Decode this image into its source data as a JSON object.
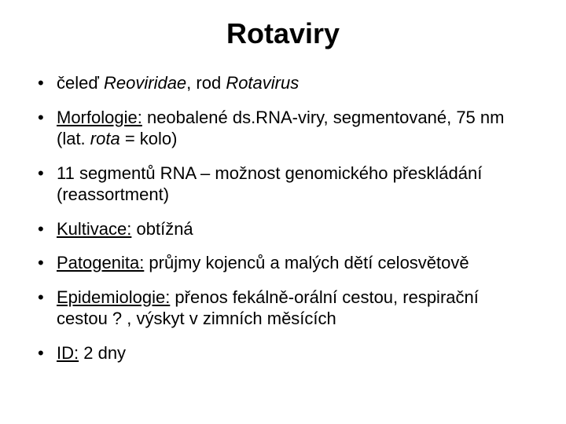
{
  "title": "Rotaviry",
  "bullets": [
    {
      "segments": [
        {
          "text": "čeleď "
        },
        {
          "text": "Reoviridae",
          "italic": true
        },
        {
          "text": ", rod "
        },
        {
          "text": "Rotavirus",
          "italic": true
        }
      ]
    },
    {
      "segments": [
        {
          "text": "Morfologie:",
          "underline": true
        },
        {
          "text": " neobalené ds.RNA-viry, segmentované, 75 nm (lat. "
        },
        {
          "text": "rota",
          "italic": true
        },
        {
          "text": " = kolo)"
        }
      ]
    },
    {
      "segments": [
        {
          "text": "11 segmentů RNA – možnost genomického přeskládání (reassortment)"
        }
      ]
    },
    {
      "segments": [
        {
          "text": "Kultivace:",
          "underline": true
        },
        {
          "text": " obtížná"
        }
      ]
    },
    {
      "segments": [
        {
          "text": "Patogenita:",
          "underline": true
        },
        {
          "text": " průjmy kojenců a malých dětí celosvětově"
        }
      ]
    },
    {
      "segments": [
        {
          "text": "Epidemiologie:",
          "underline": true
        },
        {
          "text": " přenos fekálně-orální cestou, respirační cestou ? , výskyt v zimních měsících"
        }
      ]
    },
    {
      "segments": [
        {
          "text": "ID:",
          "underline": true
        },
        {
          "text": " 2 dny"
        }
      ]
    }
  ],
  "style": {
    "background_color": "#ffffff",
    "text_color": "#000000",
    "title_fontsize": 36,
    "title_fontweight": "bold",
    "body_fontsize": 22,
    "font_family": "Arial",
    "bullet_char": "•",
    "slide_width": 720,
    "slide_height": 540
  }
}
